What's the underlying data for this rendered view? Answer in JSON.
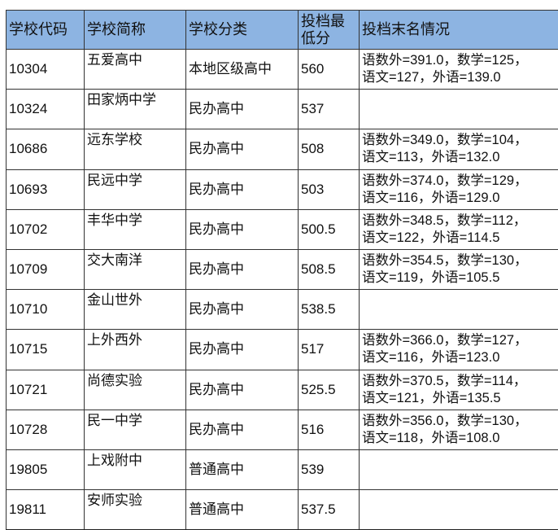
{
  "headers": [
    "学校代码",
    "学校简称",
    "学校分类",
    "投档最低分",
    "投档末名情况"
  ],
  "rows": [
    {
      "code": "10304",
      "name": "五爱高中",
      "type": "本地区级高中",
      "score": "560",
      "d1": "语数外=391.0，数学=125，",
      "d2": "语文=127，外语=139.0"
    },
    {
      "code": "10324",
      "name": "田家炳中学",
      "type": "民办高中",
      "score": "537",
      "d1": "",
      "d2": ""
    },
    {
      "code": "10686",
      "name": "远东学校",
      "type": "民办高中",
      "score": "508",
      "d1": "语数外=349.0，数学=104，",
      "d2": "语文=113，外语=132.0"
    },
    {
      "code": "10693",
      "name": "民远中学",
      "type": "民办高中",
      "score": "503",
      "d1": "语数外=374.0，数学=129，",
      "d2": "语文=116，外语=129.0"
    },
    {
      "code": "10702",
      "name": "丰华中学",
      "type": "民办高中",
      "score": "500.5",
      "d1": "语数外=348.5，数学=112，",
      "d2": "语文=122，外语=114.5"
    },
    {
      "code": "10709",
      "name": "交大南洋",
      "type": "民办高中",
      "score": "508.5",
      "d1": "语数外=354.5，数学=130，",
      "d2": "语文=119，外语=105.5"
    },
    {
      "code": "10710",
      "name": "金山世外",
      "type": "民办高中",
      "score": "538.5",
      "d1": "",
      "d2": ""
    },
    {
      "code": "10715",
      "name": "上外西外",
      "type": "民办高中",
      "score": "517",
      "d1": "语数外=366.0，数学=127，",
      "d2": "语文=116，外语=123.0"
    },
    {
      "code": "10721",
      "name": "尚德实验",
      "type": "民办高中",
      "score": "525.5",
      "d1": "语数外=370.5，数学=114，",
      "d2": "语文=121，外语=135.5"
    },
    {
      "code": "10728",
      "name": "民一中学",
      "type": "民办高中",
      "score": "516",
      "d1": "语数外=356.0，数学=130，",
      "d2": "语文=118，外语=108.0"
    },
    {
      "code": "19805",
      "name": "上戏附中",
      "type": "普通高中",
      "score": "539",
      "d1": "",
      "d2": ""
    },
    {
      "code": "19811",
      "name": "安师实验",
      "type": "普通高中",
      "score": "537.5",
      "d1": "",
      "d2": ""
    }
  ]
}
